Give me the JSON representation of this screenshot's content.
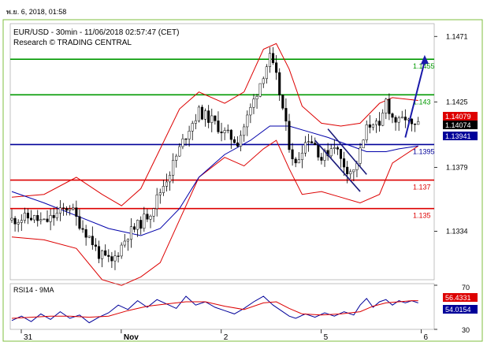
{
  "header": {
    "timestamp": "พ.ย. 6, 2018, 01:58",
    "instrument": "EUR/USD - 30min - 11/06/2018 02:57:47 (CET)",
    "source": "Research © TRADING CENTRAL"
  },
  "colors": {
    "resistance": "#009900",
    "pivot": "#000099",
    "support": "#dd0000",
    "price": "#000000",
    "bollinger": "#dd0000",
    "moving_average": "#0000aa",
    "arrow": "#1a1aaa",
    "frame": "#7fbf3f",
    "grid": "#cccccc"
  },
  "chart_data": [
    {
      "type": "candlestick",
      "panel": "price",
      "ylim": [
        1.13,
        1.148
      ],
      "y_ticks": [
        "1.1471",
        "1.1425",
        "1.1379",
        "1.1334"
      ],
      "y_tick_values": [
        1.1471,
        1.1425,
        1.1379,
        1.1334
      ],
      "x_ticks": [
        "31",
        "Nov",
        "2",
        "5",
        "6"
      ],
      "x_tick_bars": [
        0,
        31,
        62,
        93,
        124
      ],
      "bar_count": 130,
      "levels": [
        {
          "label": "1.1455",
          "value": 1.1455,
          "role": "resistance",
          "color": "#009900"
        },
        {
          "label": "1.143",
          "value": 1.143,
          "role": "resistance",
          "color": "#009900"
        },
        {
          "label": "1.1395",
          "value": 1.1395,
          "role": "pivot",
          "color": "#000099"
        },
        {
          "label": "1.137",
          "value": 1.137,
          "role": "support",
          "color": "#dd0000"
        },
        {
          "label": "1.135",
          "value": 1.135,
          "role": "support",
          "color": "#dd0000"
        }
      ],
      "last_price_labels": [
        {
          "label": "1.14079",
          "value": 1.14079,
          "bg": "#dd0000",
          "fg": "#ffffff"
        },
        {
          "label": "1.14074",
          "value": 1.14074,
          "bg": "#000000",
          "fg": "#ffffff"
        },
        {
          "label": "1.13941",
          "value": 1.13941,
          "bg": "#000099",
          "fg": "#ffffff"
        }
      ],
      "close_path": [
        [
          0,
          1.1342
        ],
        [
          6,
          1.1344
        ],
        [
          10,
          1.134
        ],
        [
          14,
          1.1346
        ],
        [
          18,
          1.1352
        ],
        [
          20,
          1.1343
        ],
        [
          24,
          1.133
        ],
        [
          27,
          1.1318
        ],
        [
          31,
          1.1312
        ],
        [
          33,
          1.132
        ],
        [
          36,
          1.1332
        ],
        [
          40,
          1.134
        ],
        [
          43,
          1.1348
        ],
        [
          46,
          1.1362
        ],
        [
          49,
          1.1376
        ],
        [
          52,
          1.1392
        ],
        [
          55,
          1.1407
        ],
        [
          58,
          1.1418
        ],
        [
          62,
          1.1412
        ],
        [
          66,
          1.1403
        ],
        [
          70,
          1.1397
        ],
        [
          72,
          1.1408
        ],
        [
          75,
          1.1426
        ],
        [
          78,
          1.1445
        ],
        [
          80,
          1.1456
        ],
        [
          82,
          1.1442
        ],
        [
          84,
          1.142
        ],
        [
          86,
          1.1395
        ],
        [
          88,
          1.138
        ],
        [
          90,
          1.1393
        ],
        [
          92,
          1.14
        ],
        [
          94,
          1.1395
        ],
        [
          96,
          1.1385
        ],
        [
          98,
          1.139
        ],
        [
          100,
          1.1396
        ],
        [
          102,
          1.1384
        ],
        [
          104,
          1.1378
        ],
        [
          106,
          1.1376
        ],
        [
          108,
          1.139
        ],
        [
          110,
          1.1406
        ],
        [
          112,
          1.1412
        ],
        [
          114,
          1.1405
        ],
        [
          116,
          1.1426
        ],
        [
          118,
          1.1414
        ],
        [
          120,
          1.141
        ],
        [
          122,
          1.1414
        ],
        [
          124,
          1.1407
        ],
        [
          126,
          1.1408
        ]
      ],
      "bollinger_upper_path": [
        [
          0,
          1.1358
        ],
        [
          10,
          1.136
        ],
        [
          20,
          1.1372
        ],
        [
          28,
          1.136
        ],
        [
          34,
          1.1352
        ],
        [
          40,
          1.1364
        ],
        [
          46,
          1.1392
        ],
        [
          52,
          1.142
        ],
        [
          58,
          1.1432
        ],
        [
          66,
          1.1424
        ],
        [
          72,
          1.1432
        ],
        [
          78,
          1.1462
        ],
        [
          82,
          1.1466
        ],
        [
          86,
          1.1448
        ],
        [
          90,
          1.1422
        ],
        [
          96,
          1.141
        ],
        [
          102,
          1.1408
        ],
        [
          108,
          1.141
        ],
        [
          114,
          1.1424
        ],
        [
          118,
          1.1428
        ],
        [
          126,
          1.1426
        ]
      ],
      "bollinger_lower_path": [
        [
          0,
          1.133
        ],
        [
          10,
          1.1328
        ],
        [
          20,
          1.1322
        ],
        [
          28,
          1.13
        ],
        [
          34,
          1.1296
        ],
        [
          40,
          1.1302
        ],
        [
          46,
          1.1312
        ],
        [
          52,
          1.1342
        ],
        [
          58,
          1.1372
        ],
        [
          66,
          1.1386
        ],
        [
          72,
          1.138
        ],
        [
          78,
          1.1392
        ],
        [
          82,
          1.1398
        ],
        [
          86,
          1.1378
        ],
        [
          90,
          1.136
        ],
        [
          96,
          1.1362
        ],
        [
          102,
          1.1358
        ],
        [
          108,
          1.1354
        ],
        [
          114,
          1.136
        ],
        [
          118,
          1.1382
        ],
        [
          126,
          1.1394
        ]
      ],
      "moving_average_path": [
        [
          0,
          1.1362
        ],
        [
          10,
          1.1354
        ],
        [
          20,
          1.1345
        ],
        [
          30,
          1.1336
        ],
        [
          40,
          1.1331
        ],
        [
          46,
          1.1336
        ],
        [
          52,
          1.135
        ],
        [
          58,
          1.1372
        ],
        [
          66,
          1.1388
        ],
        [
          74,
          1.1398
        ],
        [
          80,
          1.1408
        ],
        [
          86,
          1.1408
        ],
        [
          92,
          1.1404
        ],
        [
          98,
          1.14
        ],
        [
          104,
          1.1395
        ],
        [
          110,
          1.139
        ],
        [
          116,
          1.139
        ],
        [
          120,
          1.1392
        ],
        [
          126,
          1.1394
        ]
      ],
      "channel_lines": [
        {
          "from": [
            98,
            1.1406
          ],
          "to": [
            110,
            1.1374
          ]
        },
        {
          "from": [
            94,
            1.1398
          ],
          "to": [
            108,
            1.1362
          ]
        }
      ],
      "projection_arrow": {
        "from": [
          122,
          1.14
        ],
        "to": [
          128,
          1.1458
        ]
      }
    },
    {
      "type": "line",
      "panel": "oscillator",
      "label": "RSI14 - 9MA",
      "ylim": [
        30,
        70
      ],
      "y_ticks": [
        "70",
        "30"
      ],
      "y_tick_values": [
        70,
        30
      ],
      "value_labels": [
        {
          "label": "56.4331",
          "value": 56.43,
          "bg": "#dd0000",
          "fg": "#ffffff"
        },
        {
          "label": "54.0154",
          "value": 54.02,
          "bg": "#000099",
          "fg": "#ffffff"
        }
      ],
      "series": [
        {
          "color": "#000099",
          "values": [
            [
              0,
              38
            ],
            [
              3,
              42
            ],
            [
              6,
              37
            ],
            [
              9,
              44
            ],
            [
              12,
              39
            ],
            [
              15,
              46
            ],
            [
              18,
              40
            ],
            [
              21,
              43
            ],
            [
              24,
              36
            ],
            [
              27,
              41
            ],
            [
              30,
              45
            ],
            [
              33,
              52
            ],
            [
              36,
              48
            ],
            [
              39,
              56
            ],
            [
              42,
              50
            ],
            [
              45,
              57
            ],
            [
              48,
              53
            ],
            [
              51,
              49
            ],
            [
              54,
              60
            ],
            [
              57,
              52
            ],
            [
              60,
              55
            ],
            [
              63,
              50
            ],
            [
              66,
              47
            ],
            [
              69,
              44
            ],
            [
              72,
              49
            ],
            [
              75,
              55
            ],
            [
              78,
              60
            ],
            [
              81,
              52
            ],
            [
              84,
              46
            ],
            [
              86,
              42
            ],
            [
              88,
              40
            ],
            [
              91,
              44
            ],
            [
              94,
              41
            ],
            [
              97,
              45
            ],
            [
              100,
              42
            ],
            [
              103,
              46
            ],
            [
              106,
              43
            ],
            [
              108,
              52
            ],
            [
              110,
              58
            ],
            [
              112,
              50
            ],
            [
              114,
              55
            ],
            [
              116,
              57
            ],
            [
              118,
              52
            ],
            [
              120,
              56
            ],
            [
              122,
              54
            ],
            [
              124,
              56
            ],
            [
              126,
              54
            ]
          ]
        },
        {
          "color": "#dd0000",
          "values": [
            [
              0,
              40
            ],
            [
              6,
              41
            ],
            [
              12,
              42
            ],
            [
              18,
              42
            ],
            [
              24,
              41
            ],
            [
              30,
              42
            ],
            [
              36,
              47
            ],
            [
              42,
              51
            ],
            [
              48,
              53
            ],
            [
              54,
              55
            ],
            [
              60,
              55
            ],
            [
              66,
              51
            ],
            [
              72,
              48
            ],
            [
              78,
              54
            ],
            [
              82,
              55
            ],
            [
              86,
              49
            ],
            [
              90,
              44
            ],
            [
              96,
              43
            ],
            [
              102,
              44
            ],
            [
              108,
              46
            ],
            [
              112,
              51
            ],
            [
              116,
              54
            ],
            [
              120,
              55
            ],
            [
              124,
              56
            ],
            [
              126,
              56
            ]
          ]
        }
      ]
    }
  ]
}
